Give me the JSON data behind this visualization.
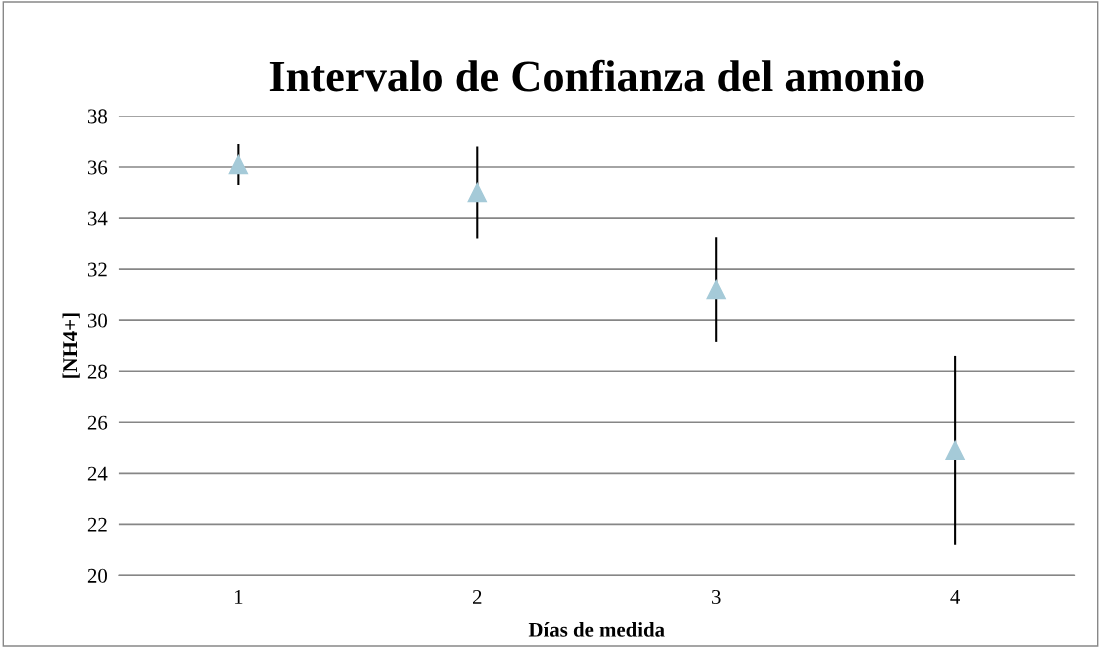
{
  "chart_data": {
    "type": "scatter",
    "title": "Intervalo de Confianza del amonio",
    "xlabel": "Días de medida",
    "ylabel": "[NH4+]",
    "categories": [
      "1",
      "2",
      "3",
      "4"
    ],
    "series": [
      {
        "color": "#a5cad8",
        "values": [
          36.1,
          35.0,
          31.2,
          24.9
        ],
        "errors": [
          0.8,
          1.8,
          2.05,
          3.7
        ]
      }
    ],
    "ylim": [
      20,
      38
    ],
    "yticks": [
      20,
      22,
      24,
      26,
      28,
      30,
      32,
      34,
      36,
      38
    ],
    "grid": "y",
    "marker": "triangle",
    "legend": false
  }
}
